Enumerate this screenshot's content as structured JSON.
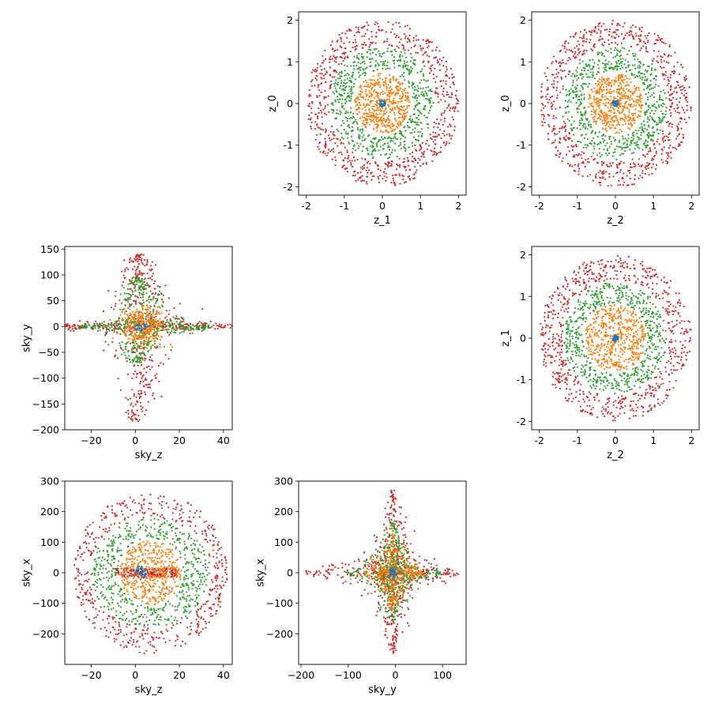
{
  "chart_data": [
    {
      "type": "scatter",
      "xlabel": "z_1",
      "ylabel": "z_0",
      "xlim": [
        -2.2,
        2.2
      ],
      "ylim": [
        -2.2,
        2.2
      ],
      "xticks": [
        "-2",
        "-1",
        "0",
        "1",
        "2"
      ],
      "xtick_values": [
        -2,
        -1,
        0,
        1,
        2
      ],
      "yticks": [
        "-2",
        "-1",
        "0",
        "1",
        "2"
      ],
      "ytick_values": [
        -2,
        -1,
        0,
        1,
        2
      ],
      "grid": false,
      "series": [
        {
          "color": "#1f77b4",
          "shape": "disk",
          "radius": 0.08,
          "n": 40
        },
        {
          "color": "#ff7f0e",
          "shape": "disk",
          "radius": 0.72,
          "n": 500
        },
        {
          "color": "#2ca02c",
          "shape": "ring",
          "r_min": 0.8,
          "r_max": 1.35,
          "n": 600
        },
        {
          "color": "#d62728",
          "shape": "ring",
          "r_min": 1.4,
          "r_max": 2.0,
          "n": 700
        }
      ]
    },
    {
      "type": "scatter",
      "xlabel": "z_2",
      "ylabel": "z_0",
      "xlim": [
        -2.2,
        2.2
      ],
      "ylim": [
        -2.2,
        2.2
      ],
      "xticks": [
        "-2",
        "-1",
        "0",
        "1",
        "2"
      ],
      "xtick_values": [
        -2,
        -1,
        0,
        1,
        2
      ],
      "yticks": [
        "-2",
        "-1",
        "0",
        "1",
        "2"
      ],
      "ytick_values": [
        -2,
        -1,
        0,
        1,
        2
      ],
      "grid": false,
      "series": [
        {
          "color": "#1f77b4",
          "shape": "disk",
          "radius": 0.08,
          "n": 40
        },
        {
          "color": "#ff7f0e",
          "shape": "disk",
          "radius": 0.72,
          "n": 500
        },
        {
          "color": "#2ca02c",
          "shape": "ring",
          "r_min": 0.8,
          "r_max": 1.35,
          "n": 600
        },
        {
          "color": "#d62728",
          "shape": "ring",
          "r_min": 1.4,
          "r_max": 2.0,
          "n": 700
        }
      ]
    },
    {
      "type": "scatter",
      "xlabel": "sky_z",
      "ylabel": "sky_y",
      "xlim": [
        -32,
        44
      ],
      "ylim": [
        -200,
        155
      ],
      "xticks": [
        "−20",
        "0",
        "20",
        "40"
      ],
      "xtick_values": [
        -20,
        0,
        20,
        40
      ],
      "yticks": [
        "−200",
        "−150",
        "−100",
        "−50",
        "0",
        "50",
        "100",
        "150"
      ],
      "ytick_values": [
        -200,
        -150,
        -100,
        -50,
        0,
        50,
        100,
        150
      ],
      "grid": false,
      "series": [
        {
          "color": "#1f77b4",
          "shape": "blob",
          "cx": 2,
          "cy": 0,
          "sx": 2,
          "sy": 5,
          "n": 40
        },
        {
          "color": "#ff7f0e",
          "shape": "blob",
          "cx": 4,
          "cy": 0,
          "sx": 5,
          "sy": 20,
          "n": 350
        },
        {
          "color": "#2ca02c",
          "shape": "spikes",
          "cx": 4,
          "cy": 0,
          "up_len": 95,
          "down_len": 70,
          "h_len": 30,
          "n": 500
        },
        {
          "color": "#d62728",
          "shape": "spikes",
          "cx": 4,
          "cy": 0,
          "up_len": 140,
          "down_len": 185,
          "h_len": 40,
          "n": 650
        }
      ]
    },
    {
      "type": "scatter",
      "xlabel": "z_2",
      "ylabel": "z_1",
      "xlim": [
        -2.2,
        2.2
      ],
      "ylim": [
        -2.2,
        2.2
      ],
      "xticks": [
        "-2",
        "-1",
        "0",
        "1",
        "2"
      ],
      "xtick_values": [
        -2,
        -1,
        0,
        1,
        2
      ],
      "yticks": [
        "-2",
        "-1",
        "0",
        "1",
        "2"
      ],
      "ytick_values": [
        -2,
        -1,
        0,
        1,
        2
      ],
      "grid": false,
      "series": [
        {
          "color": "#1f77b4",
          "shape": "disk",
          "radius": 0.08,
          "n": 40
        },
        {
          "color": "#ff7f0e",
          "shape": "disk",
          "radius": 0.8,
          "n": 500
        },
        {
          "color": "#2ca02c",
          "shape": "ring",
          "r_min": 0.85,
          "r_max": 1.35,
          "n": 600
        },
        {
          "color": "#d62728",
          "shape": "ring",
          "r_min": 1.4,
          "r_max": 2.0,
          "n": 700
        }
      ]
    },
    {
      "type": "scatter",
      "xlabel": "sky_z",
      "ylabel": "sky_x",
      "xlim": [
        -32,
        44
      ],
      "ylim": [
        -300,
        300
      ],
      "xticks": [
        "−20",
        "0",
        "20",
        "40"
      ],
      "xtick_values": [
        -20,
        0,
        20,
        40
      ],
      "yticks": [
        "−200",
        "−100",
        "0",
        "100",
        "200",
        "300"
      ],
      "ytick_values": [
        -200,
        -100,
        0,
        100,
        200,
        300
      ],
      "grid": false,
      "series": [
        {
          "color": "#1f77b4",
          "shape": "blob",
          "cx": 3,
          "cy": 0,
          "sx": 2,
          "sy": 10,
          "n": 40
        },
        {
          "color": "#ff7f0e",
          "shape": "ellipse",
          "cx": 7,
          "cy": 0,
          "rx": 14,
          "ry": 105,
          "n": 450
        },
        {
          "color": "#2ca02c",
          "shape": "ellipse-ring",
          "cx": 7,
          "cy": 0,
          "rx_min": 15,
          "rx_max": 27,
          "ry_min": 110,
          "ry_max": 178,
          "n": 550
        },
        {
          "color": "#d62728",
          "shape": "ellipse-ring",
          "cx": 7,
          "cy": 0,
          "rx_min": 28,
          "rx_max": 35,
          "ry_min": 180,
          "ry_max": 265,
          "n": 500
        },
        {
          "color": "#d62728",
          "shape": "bar",
          "cx": 5,
          "cy": 0,
          "hw": 14,
          "hh": 15,
          "n": 200
        }
      ]
    },
    {
      "type": "scatter",
      "xlabel": "sky_y",
      "ylabel": "sky_x",
      "xlim": [
        -205,
        150
      ],
      "ylim": [
        -300,
        300
      ],
      "xticks": [
        "−200",
        "−100",
        "0",
        "100"
      ],
      "xtick_values": [
        -200,
        -100,
        0,
        100
      ],
      "yticks": [
        "−200",
        "−100",
        "0",
        "100",
        "200",
        "300"
      ],
      "ytick_values": [
        -200,
        -100,
        0,
        100,
        200,
        300
      ],
      "grid": false,
      "series": [
        {
          "color": "#1f77b4",
          "shape": "blob",
          "cx": -5,
          "cy": 0,
          "sx": 4,
          "sy": 10,
          "n": 40
        },
        {
          "color": "#ff7f0e",
          "shape": "star",
          "cx": -5,
          "cy": 0,
          "up_len": 130,
          "down_len": 120,
          "left_len": 60,
          "right_len": 60,
          "n": 400
        },
        {
          "color": "#2ca02c",
          "shape": "star",
          "cx": -5,
          "cy": 0,
          "up_len": 170,
          "down_len": 160,
          "left_len": 100,
          "right_len": 100,
          "n": 500
        },
        {
          "color": "#d62728",
          "shape": "star",
          "cx": -5,
          "cy": 0,
          "up_len": 270,
          "down_len": 265,
          "left_len": 185,
          "right_len": 140,
          "n": 700
        }
      ]
    }
  ]
}
